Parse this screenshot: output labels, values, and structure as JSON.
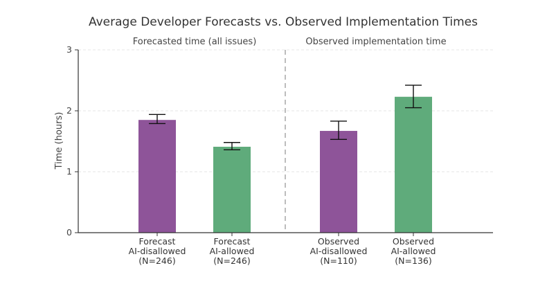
{
  "chart_data": {
    "type": "bar",
    "title": "Average Developer Forecasts vs. Observed Implementation Times",
    "ylabel": "Time (hours)",
    "xlabel": "",
    "ylim": [
      0,
      3
    ],
    "yticks": [
      "0",
      "1",
      "2",
      "3"
    ],
    "grid": true,
    "panels": [
      {
        "label": "Forecasted time (all issues)"
      },
      {
        "label": "Observed implementation time"
      }
    ],
    "categories": [
      [
        "Forecast",
        "AI-disallowed",
        "(N=246)"
      ],
      [
        "Forecast",
        "AI-allowed",
        "(N=246)"
      ],
      [
        "Observed",
        "AI-disallowed",
        "(N=110)"
      ],
      [
        "Observed",
        "AI-allowed",
        "(N=136)"
      ]
    ],
    "values": [
      1.85,
      1.41,
      1.67,
      2.23
    ],
    "error_low": [
      1.79,
      1.36,
      1.53,
      2.05
    ],
    "error_high": [
      1.94,
      1.48,
      1.83,
      2.42
    ],
    "colors": [
      "#8e5499",
      "#5fab7b",
      "#8e5499",
      "#5fab7b"
    ]
  }
}
